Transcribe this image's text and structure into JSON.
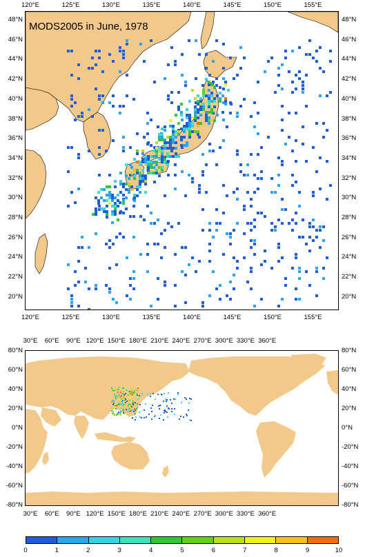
{
  "top_map": {
    "title": "MODS2005 in June, 1978",
    "x_ticks": [
      "120°E",
      "125°E",
      "130°E",
      "135°E",
      "140°E",
      "145°E",
      "150°E",
      "155°E"
    ],
    "y_ticks": [
      "48°N",
      "46°N",
      "44°N",
      "42°N",
      "40°N",
      "38°N",
      "36°N",
      "34°N",
      "32°N",
      "30°N",
      "28°N",
      "26°N",
      "24°N",
      "22°N",
      "20°N"
    ]
  },
  "bottom_map": {
    "x_ticks": [
      "30°E",
      "60°E",
      "90°E",
      "120°E",
      "150°E",
      "180°E",
      "210°E",
      "240°E",
      "270°E",
      "300°E",
      "330°E",
      "360°E"
    ],
    "y_ticks": [
      "80°N",
      "60°N",
      "40°N",
      "20°N",
      "0°N",
      "-20°N",
      "-40°N",
      "-60°N",
      "-80°N"
    ]
  },
  "colorbar": {
    "labels": [
      "0",
      "1",
      "2",
      "3",
      "4",
      "5",
      "6",
      "7",
      "8",
      "9",
      "10"
    ],
    "colors": [
      "#1e5fd8",
      "#2aa5f0",
      "#3ad1e0",
      "#40e0b8",
      "#30c830",
      "#60d020",
      "#b8e020",
      "#f0f020",
      "#f8c020",
      "#f07010"
    ]
  },
  "colors": {
    "land": "#f3c98b",
    "ocean": "#ffffff"
  }
}
